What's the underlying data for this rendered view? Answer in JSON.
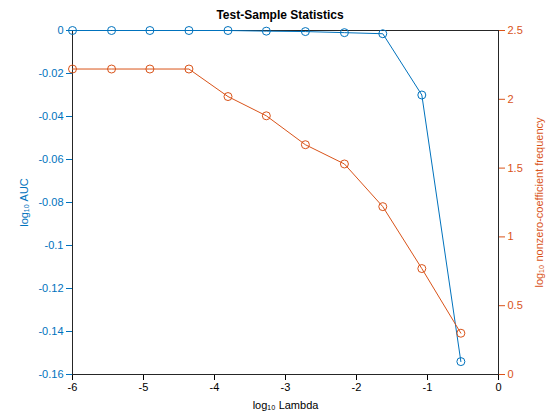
{
  "chart_data": {
    "type": "line",
    "title": "Test-Sample Statistics",
    "x_label": "log₁₀ Lambda",
    "y_label": "log₁₀ AUC",
    "y2_label": "log₁₀ nonzero-coefficient frequency",
    "x": [
      -6,
      -5.45,
      -4.91,
      -4.36,
      -3.81,
      -3.27,
      -2.72,
      -2.17,
      -1.63,
      -1.08,
      -0.53
    ],
    "series": [
      {
        "color": "#0072bd",
        "marker": "circle",
        "axis": "y",
        "values": [
          0,
          0,
          0,
          0,
          0,
          -0.0003,
          -0.0005,
          -0.001,
          -0.0015,
          -0.03,
          -0.154
        ]
      },
      {
        "color": "#d95319",
        "marker": "circle",
        "axis": "y2",
        "values": [
          2.22,
          2.22,
          2.22,
          2.22,
          2.02,
          1.88,
          1.67,
          1.53,
          1.22,
          0.77,
          0.3
        ]
      }
    ],
    "xlim": [
      -6,
      0
    ],
    "xticks": [
      -6,
      -5,
      -4,
      -3,
      -2,
      -1,
      0
    ],
    "ylim": [
      -0.16,
      0
    ],
    "yticks": [
      -0.16,
      -0.14,
      -0.12,
      -0.1,
      -0.08,
      -0.06,
      -0.04,
      -0.02,
      0
    ],
    "y2lim": [
      0,
      2.5
    ],
    "y2ticks": [
      0,
      0.5,
      1,
      1.5,
      2,
      2.5
    ],
    "grid": false
  }
}
